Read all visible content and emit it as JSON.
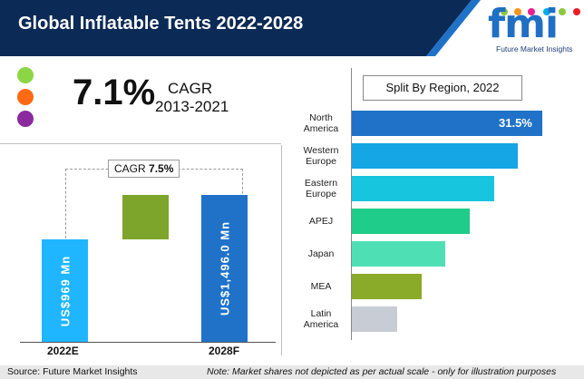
{
  "header": {
    "title": "Global Inflatable Tents 2022-2028",
    "bg_color": "#0b2a55",
    "accent_color": "#1f72c8"
  },
  "logo": {
    "text": "fmi",
    "subtitle": "Future Market Insights",
    "dot_colors": [
      "#8dc63f",
      "#f7941d",
      "#e91e8c",
      "#00aeef",
      "#8dc63f",
      "#ed1c24"
    ]
  },
  "legend_dots": [
    {
      "color": "#8cd645",
      "icon": "green-dot-icon"
    },
    {
      "color": "#ff6a13",
      "icon": "orange-dot-icon"
    },
    {
      "color": "#8b2a9e",
      "icon": "purple-dot-icon"
    }
  ],
  "cagr_block": {
    "value": "7.1%",
    "label": "CAGR",
    "period": "2013-2021"
  },
  "chart_data": [
    {
      "type": "bar",
      "categories": [
        "2022E",
        "2028F"
      ],
      "values": [
        969,
        1496.0
      ],
      "value_labels": [
        "US$969 Mn",
        "US$1,496.0 Mn"
      ],
      "annotation": {
        "prefix": "CAGR ",
        "value": "7.5%"
      },
      "colors": {
        "start": "#1fb6ff",
        "growth": "#7ea52b",
        "end": "#1f72c8"
      }
    },
    {
      "type": "bar",
      "title": "Split By Region, 2022",
      "orientation": "horizontal",
      "categories": [
        "North America",
        "Western Europe",
        "Eastern Europe",
        "APEJ",
        "Japan",
        "MEA",
        "Latin America"
      ],
      "values": [
        31.5,
        27.5,
        23.5,
        19.5,
        15.5,
        11.5,
        7.5
      ],
      "labeled_value": "31.5%",
      "colors": [
        "#1f72c8",
        "#15a6e6",
        "#18c5df",
        "#1fcc8a",
        "#4ee0b4",
        "#8aaa2a",
        "#c8ccd4"
      ]
    }
  ],
  "footer": {
    "source": "Source: Future Market Insights",
    "note": "Note: Market shares not depicted as per actual scale - only for illustration purposes"
  }
}
